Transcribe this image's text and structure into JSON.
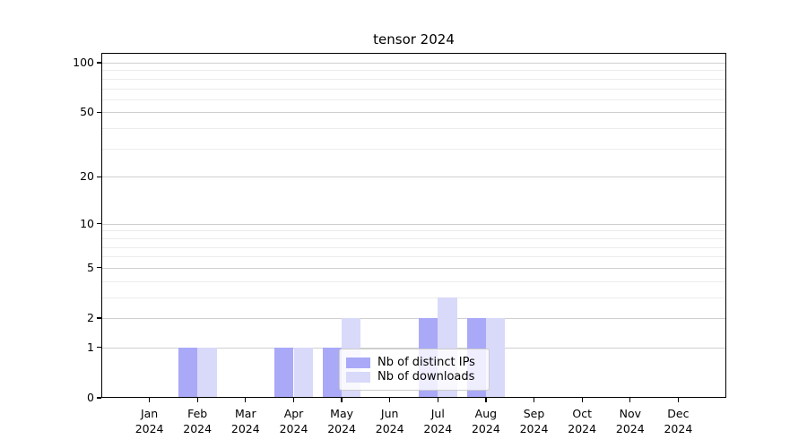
{
  "chart_data": {
    "type": "bar",
    "title": "tensor 2024",
    "categories": [
      "Jan 2024",
      "Feb 2024",
      "Mar 2024",
      "Apr 2024",
      "May 2024",
      "Jun 2024",
      "Jul 2024",
      "Aug 2024",
      "Sep 2024",
      "Oct 2024",
      "Nov 2024",
      "Dec 2024"
    ],
    "series": [
      {
        "name": "Nb of distinct IPs",
        "color": "#a9a9f8",
        "values": [
          0,
          1,
          0,
          1,
          1,
          0,
          2,
          2,
          0,
          0,
          0,
          0
        ]
      },
      {
        "name": "Nb of downloads",
        "color": "#d9d9f9",
        "values": [
          0,
          1,
          0,
          1,
          2,
          0,
          3,
          2,
          0,
          0,
          0,
          0
        ]
      }
    ],
    "yscale": "log1p",
    "ylim": [
      0,
      114.6
    ],
    "y_major_ticks": [
      0,
      1,
      2,
      5,
      10,
      20,
      50,
      100
    ],
    "y_major_tick_labels": [
      "0",
      "1",
      "2",
      "5",
      "10",
      "20",
      "50",
      "100"
    ],
    "y_minor_ticks": [
      3,
      4,
      6,
      7,
      8,
      9,
      30,
      40,
      60,
      70,
      80,
      90
    ],
    "xlabel": "",
    "ylabel": "",
    "grid": "both horizontal",
    "legend_position": "lower center inside",
    "bar_group_offset": "distinct IPs left of month center, downloads right of month center"
  },
  "colors": {
    "background": "#ffffff",
    "series_ips": "#a9a9f8",
    "series_downloads": "#d9d9f9",
    "grid_major": "#cfcfcf",
    "grid_minor": "#ececec",
    "spine": "#000000",
    "legend_border": "#cccccc",
    "text": "#000000"
  }
}
